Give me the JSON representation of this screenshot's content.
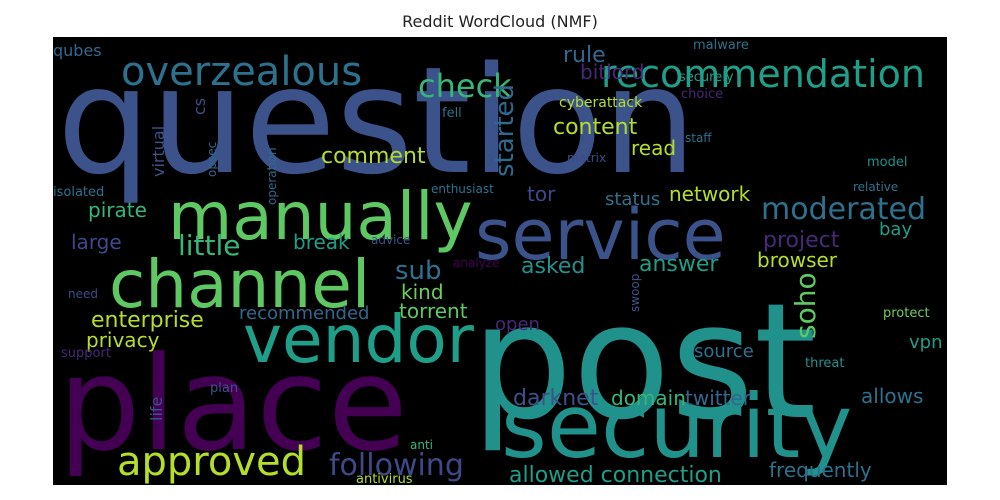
{
  "title": "Reddit WordCloud (NMF)",
  "colors": {
    "background": "#000000",
    "page": "#ffffff",
    "palette": [
      "#440154",
      "#482878",
      "#3e4989",
      "#31688e",
      "#26828e",
      "#1f9e89",
      "#35b779",
      "#6ece58",
      "#b5de2b",
      "#fde725"
    ]
  },
  "words": [
    {
      "text": "question",
      "color": "#3b528b"
    },
    {
      "text": "post",
      "color": "#21918c"
    },
    {
      "text": "place",
      "color": "#440154"
    },
    {
      "text": "security",
      "color": "#21918c"
    },
    {
      "text": "service",
      "color": "#3b528b"
    },
    {
      "text": "manually",
      "color": "#5ec962"
    },
    {
      "text": "channel",
      "color": "#5ec962"
    },
    {
      "text": "vendor",
      "color": "#1f9e89"
    },
    {
      "text": "overzealous",
      "color": "#2c728e"
    },
    {
      "text": "recommendation",
      "color": "#1f9e89"
    },
    {
      "text": "approved",
      "color": "#b5de2b"
    },
    {
      "text": "check",
      "color": "#35b779"
    },
    {
      "text": "following",
      "color": "#3e4989"
    },
    {
      "text": "moderated",
      "color": "#2c728e"
    },
    {
      "text": "little",
      "color": "#35b779"
    },
    {
      "text": "comment",
      "color": "#b5de2b"
    },
    {
      "text": "content",
      "color": "#b5de2b"
    },
    {
      "text": "started",
      "color": "#31688e"
    },
    {
      "text": "soho",
      "color": "#5ec962"
    },
    {
      "text": "sub",
      "color": "#2c728e"
    },
    {
      "text": "darknet",
      "color": "#3b528b"
    },
    {
      "text": "allowed connection",
      "color": "#1f9e89"
    },
    {
      "text": "twitter",
      "color": "#31688e"
    },
    {
      "text": "domain",
      "color": "#35b779"
    },
    {
      "text": "project",
      "color": "#482878"
    },
    {
      "text": "asked",
      "color": "#21918c"
    },
    {
      "text": "answer",
      "color": "#1f9e89"
    },
    {
      "text": "frequently",
      "color": "#2c728e"
    },
    {
      "text": "enterprise",
      "color": "#b5de2b"
    },
    {
      "text": "break",
      "color": "#1f9e89"
    },
    {
      "text": "network",
      "color": "#b5de2b"
    },
    {
      "text": "browser",
      "color": "#b5de2b"
    },
    {
      "text": "kind",
      "color": "#6ece58"
    },
    {
      "text": "torrent",
      "color": "#5ec962"
    },
    {
      "text": "rule",
      "color": "#31688e"
    },
    {
      "text": "bitlord",
      "color": "#482878"
    },
    {
      "text": "status",
      "color": "#2c728e"
    },
    {
      "text": "read",
      "color": "#b5de2b"
    },
    {
      "text": "tor",
      "color": "#3e4989"
    },
    {
      "text": "source",
      "color": "#2c728e"
    },
    {
      "text": "allows",
      "color": "#2c728e"
    },
    {
      "text": "privacy",
      "color": "#b5de2b"
    },
    {
      "text": "pirate",
      "color": "#35b779"
    },
    {
      "text": "large",
      "color": "#3e4989"
    },
    {
      "text": "recommended",
      "color": "#31688e"
    },
    {
      "text": "open",
      "color": "#482878"
    },
    {
      "text": "vpn",
      "color": "#1f9e89"
    },
    {
      "text": "bay",
      "color": "#1f9e89"
    },
    {
      "text": "qubes",
      "color": "#31688e"
    },
    {
      "text": "virtual",
      "color": "#3b528b"
    },
    {
      "text": "cs",
      "color": "#3b528b"
    },
    {
      "text": "isolated",
      "color": "#2c728e"
    },
    {
      "text": "opsec",
      "color": "#31688e"
    },
    {
      "text": "operation",
      "color": "#31688e"
    },
    {
      "text": "life",
      "color": "#3b528b"
    },
    {
      "text": "support",
      "color": "#482878"
    },
    {
      "text": "need",
      "color": "#3e4989"
    },
    {
      "text": "plan",
      "color": "#3b528b"
    },
    {
      "text": "malware",
      "color": "#2c728e"
    },
    {
      "text": "securely",
      "color": "#1f9e89"
    },
    {
      "text": "choice",
      "color": "#482878"
    },
    {
      "text": "staff",
      "color": "#2c728e"
    },
    {
      "text": "model",
      "color": "#21918c"
    },
    {
      "text": "relative",
      "color": "#2c728e"
    },
    {
      "text": "cyberattack",
      "color": "#b5de2b"
    },
    {
      "text": "fell",
      "color": "#2c728e"
    },
    {
      "text": "matrix",
      "color": "#3e4989"
    },
    {
      "text": "enthusiast",
      "color": "#2c728e"
    },
    {
      "text": "advice",
      "color": "#3b528b"
    },
    {
      "text": "analyze",
      "color": "#440154"
    },
    {
      "text": "swoop",
      "color": "#3b528b"
    },
    {
      "text": "protect",
      "color": "#6ece58"
    },
    {
      "text": "threat",
      "color": "#21918c"
    },
    {
      "text": "anti",
      "color": "#35b779"
    },
    {
      "text": "antivirus",
      "color": "#b5de2b"
    }
  ]
}
